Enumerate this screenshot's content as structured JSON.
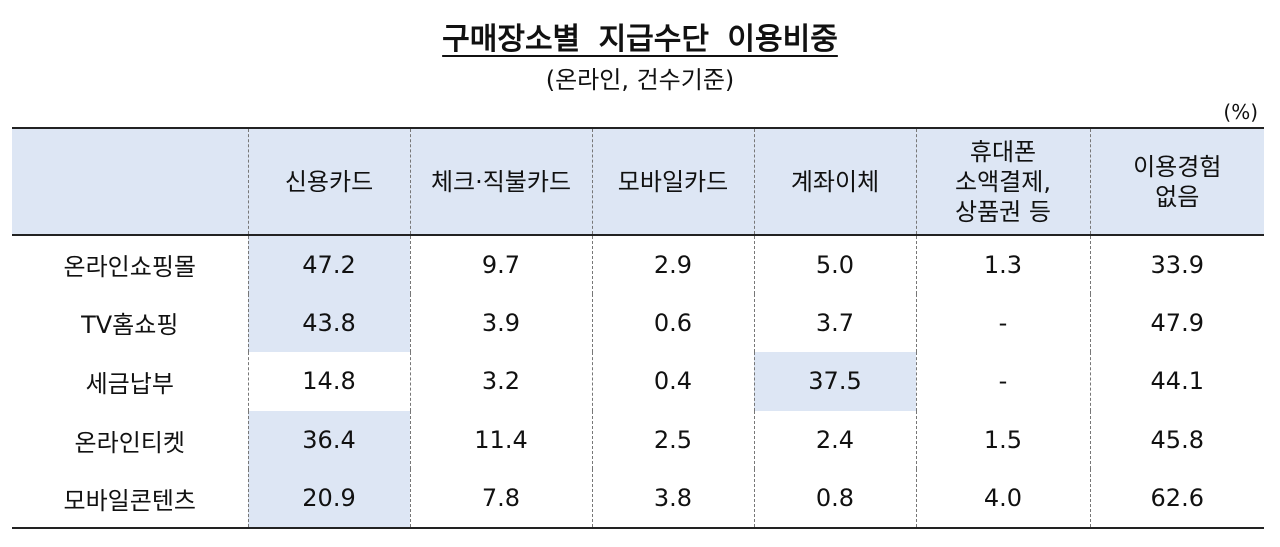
{
  "title": "구매장소별 지급수단 이용비중",
  "subtitle": "(온라인, 건수기준)",
  "unit": "(%)",
  "columns": [
    {
      "lines": [
        "신용카드"
      ]
    },
    {
      "lines": [
        "체크·직불카드"
      ]
    },
    {
      "lines": [
        "모바일카드"
      ]
    },
    {
      "lines": [
        "계좌이체"
      ]
    },
    {
      "lines": [
        "휴대폰",
        "소액결제,",
        "상품권 등"
      ]
    },
    {
      "lines": [
        "이용경험",
        "없음"
      ]
    }
  ],
  "rows": [
    {
      "label": "온라인쇼핑몰",
      "values": [
        "47.2",
        "9.7",
        "2.9",
        "5.0",
        "1.3",
        "33.9"
      ],
      "highlight": [
        0
      ]
    },
    {
      "label": "TV홈쇼핑",
      "values": [
        "43.8",
        "3.9",
        "0.6",
        "3.7",
        "-",
        "47.9"
      ],
      "highlight": [
        0
      ]
    },
    {
      "label": "세금납부",
      "values": [
        "14.8",
        "3.2",
        "0.4",
        "37.5",
        "-",
        "44.1"
      ],
      "highlight": [
        3
      ]
    },
    {
      "label": "온라인티켓",
      "values": [
        "36.4",
        "11.4",
        "2.5",
        "2.4",
        "1.5",
        "45.8"
      ],
      "highlight": [
        0
      ]
    },
    {
      "label": "모바일콘텐츠",
      "values": [
        "20.9",
        "7.8",
        "3.8",
        "0.8",
        "4.0",
        "62.6"
      ],
      "highlight": [
        0
      ]
    }
  ],
  "colors": {
    "header_bg": "#dde6f4",
    "highlight_bg": "#dde6f4",
    "rule": "#222222"
  }
}
